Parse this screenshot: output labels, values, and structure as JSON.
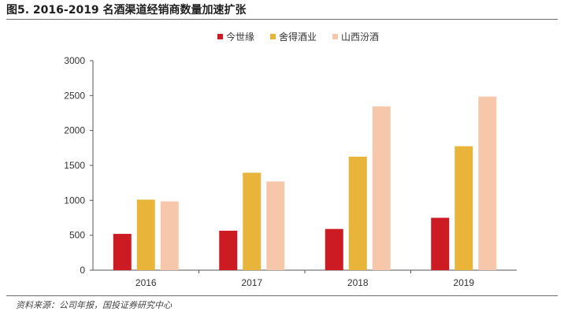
{
  "title": "图5. 2016-2019 名酒渠道经销商数量加速扩张",
  "source": "资料来源：公司年报，国投证券研究中心",
  "chart_data": {
    "type": "bar",
    "categories": [
      "2016",
      "2017",
      "2018",
      "2019"
    ],
    "series": [
      {
        "name": "今世缘",
        "color": "#cc1b23",
        "values": [
          520,
          565,
          590,
          750
        ]
      },
      {
        "name": "舍得酒业",
        "color": "#e8b43a",
        "values": [
          1010,
          1395,
          1625,
          1775
        ]
      },
      {
        "name": "山西汾酒",
        "color": "#f7c7ac",
        "values": [
          985,
          1270,
          2345,
          2485
        ]
      }
    ],
    "ylim": [
      0,
      3000
    ],
    "yticks": [
      0,
      500,
      1000,
      1500,
      2000,
      2500,
      3000
    ],
    "legend": "top-center",
    "grid": false
  }
}
